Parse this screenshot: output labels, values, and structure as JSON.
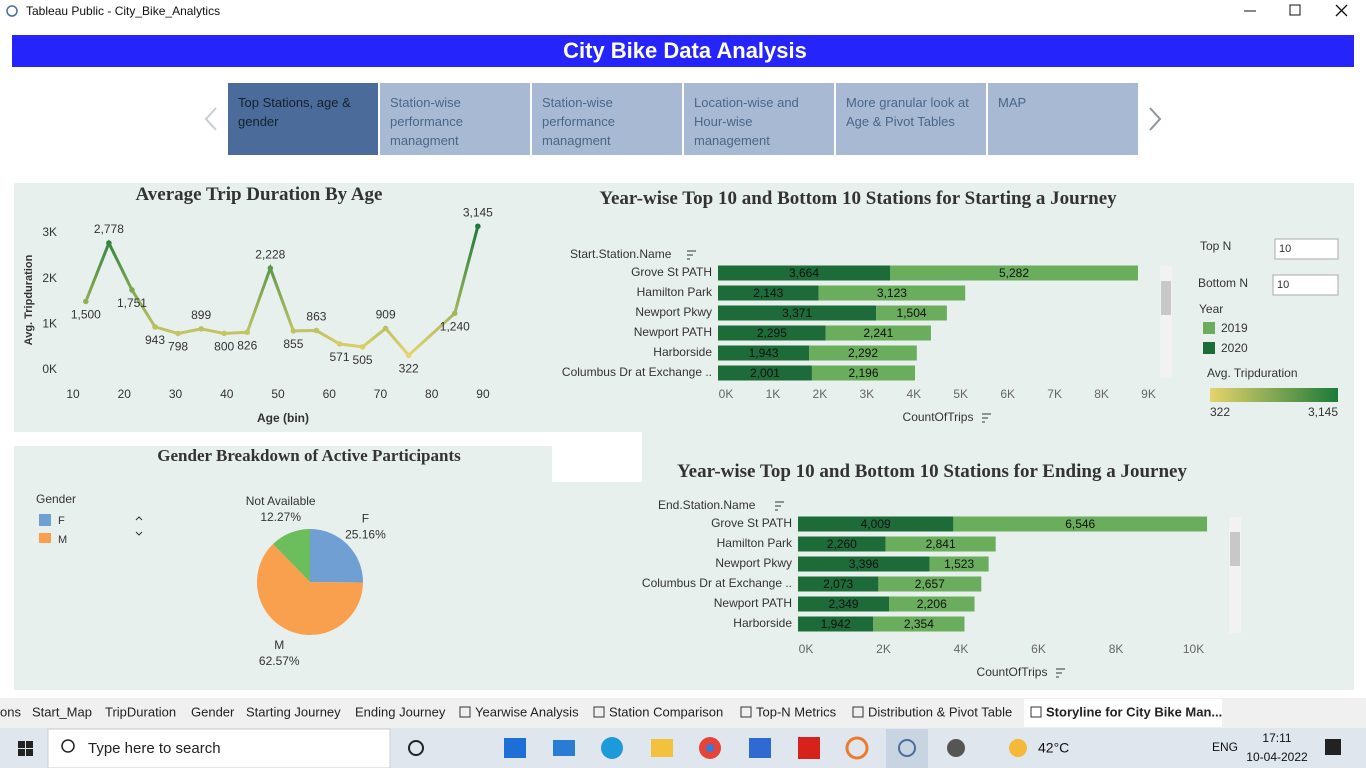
{
  "window": {
    "title": "Tableau Public - City_Bike_Analytics"
  },
  "header": {
    "title": "City Bike Data Analysis"
  },
  "story_points": [
    "Top Stations, age & gender",
    "Station-wise performance managment",
    "Station-wise performance managment",
    "Location-wise and Hour-wise management",
    "More granular look at Age & Pivot Tables",
    "MAP"
  ],
  "filters": {
    "top_n_label": "Top N",
    "top_n": 10,
    "bottom_n_label": "Bottom N",
    "bottom_n": 10
  },
  "chart_data": [
    {
      "type": "line",
      "title": "Average Trip Duration By Age",
      "x_label": "Age (bin)",
      "y_label": "Avg. Tripduration",
      "x": [
        12.5,
        17,
        21.5,
        26,
        30.5,
        35,
        39.5,
        44,
        48.5,
        53,
        57.5,
        62,
        66.5,
        71,
        75.5,
        84.5,
        89
      ],
      "values": [
        1500,
        2778,
        1751,
        943,
        798,
        899,
        800,
        826,
        2228,
        855,
        863,
        571,
        505,
        909,
        322,
        1240,
        3145
      ],
      "value_labels": [
        "1,500",
        "2,778",
        "1,751",
        "943",
        "798",
        "899",
        "800",
        "826",
        "2,228",
        "855",
        "863",
        "571",
        "505",
        "909",
        "322",
        "1,240",
        "3,145"
      ],
      "xlim": [
        5,
        95
      ],
      "xticks": [
        10,
        20,
        30,
        40,
        50,
        60,
        70,
        80,
        90
      ],
      "ylim": [
        -300,
        3300
      ],
      "yticks": [
        {
          "value": 0,
          "label": "0K"
        },
        {
          "value": 1000,
          "label": "1K"
        },
        {
          "value": 2000,
          "label": "2K"
        },
        {
          "value": 3000,
          "label": "3K"
        }
      ],
      "color_scale": {
        "title": "Avg. Tripduration",
        "colors": [
          "#e6d46c",
          "#1c7a3a"
        ],
        "range": [
          322,
          {
            "value": 3145,
            "label": "3,145"
          }
        ]
      }
    },
    {
      "type": "bar",
      "orientation": "horizontal",
      "stacked": true,
      "title": "Year-wise Top 10 and Bottom 10 Stations for Starting a Journey",
      "category_label": "Start.Station.Name",
      "x_label": "CountOfTrips",
      "legend_title": "Year",
      "categories": [
        "Grove St PATH",
        "Hamilton Park",
        "Newport Pkwy",
        "Newport PATH",
        "Harborside",
        "Columbus Dr at Exchange .."
      ],
      "series": [
        {
          "name": "2019",
          "color": "#6aad5c",
          "values": [
            5282,
            3123,
            1504,
            2241,
            2292,
            2196
          ],
          "value_labels": [
            "5,282",
            "3,123",
            "1,504",
            "2,241",
            "2,292",
            "2,196"
          ]
        },
        {
          "name": "2020",
          "color": "#1e6b3a",
          "values": [
            3664,
            2143,
            3371,
            2295,
            1943,
            2001
          ],
          "value_labels": [
            "3,664",
            "2,143",
            "3,371",
            "2,295",
            "1,943",
            "2,001"
          ]
        }
      ],
      "xlim": [
        0,
        9300
      ],
      "xticks": [
        {
          "value": 0,
          "label": "0K"
        },
        {
          "value": 1000,
          "label": "1K"
        },
        {
          "value": 2000,
          "label": "2K"
        },
        {
          "value": 3000,
          "label": "3K"
        },
        {
          "value": 4000,
          "label": "4K"
        },
        {
          "value": 5000,
          "label": "5K"
        },
        {
          "value": 6000,
          "label": "6K"
        },
        {
          "value": 7000,
          "label": "7K"
        },
        {
          "value": 8000,
          "label": "8K"
        },
        {
          "value": 9000,
          "label": "9K"
        }
      ]
    },
    {
      "type": "bar",
      "orientation": "horizontal",
      "stacked": true,
      "title": "Year-wise Top 10 and Bottom 10 Stations for Ending a Journey",
      "category_label": "End.Station.Name",
      "x_label": "CountOfTrips",
      "categories": [
        "Grove St PATH",
        "Hamilton Park",
        "Newport Pkwy",
        "Columbus Dr at Exchange ..",
        "Newport PATH",
        "Harborside"
      ],
      "series": [
        {
          "color": "#6aad5c",
          "values": [
            6546,
            2841,
            1523,
            2657,
            2206,
            2354
          ],
          "value_labels": [
            "6,546",
            "2,841",
            "1,523",
            "2,657",
            "2,206",
            "2,354"
          ]
        },
        {
          "color": "#1e6b3a",
          "values": [
            4009,
            2260,
            3396,
            2073,
            2349,
            1942
          ],
          "value_labels": [
            "4,009",
            "2,260",
            "3,396",
            "2,073",
            "2,349",
            "1,942"
          ]
        }
      ],
      "xlim": [
        0,
        11000
      ],
      "xticks": [
        {
          "value": 0,
          "label": "0K"
        },
        {
          "value": 2000,
          "label": "2K"
        },
        {
          "value": 4000,
          "label": "4K"
        },
        {
          "value": 6000,
          "label": "6K"
        },
        {
          "value": 8000,
          "label": "8K"
        },
        {
          "value": 10000,
          "label": "10K"
        }
      ]
    },
    {
      "type": "pie",
      "title": "Gender Breakdown of Active Participants",
      "legend_title": "Gender",
      "categories": [
        "F",
        "M",
        "Not Available"
      ],
      "values": [
        25.16,
        62.57,
        12.27
      ],
      "value_labels": [
        "25.16%",
        "62.57%",
        "12.27%"
      ],
      "colors": [
        "#6f9fd3",
        "#f9a04e",
        "#6cbd5c"
      ]
    }
  ],
  "sheet_tabs": [
    "ons",
    "Start_Map",
    "TripDuration",
    "Gender",
    "Starting Journey",
    "Ending Journey",
    "Yearwise Analysis",
    "Station Comparison",
    "Top-N Metrics",
    "Distribution & Pivot Table",
    "Storyline for City Bike Man..."
  ],
  "taskbar": {
    "search": "Type here to search",
    "weather": "42°C",
    "language": "ENG",
    "time": "17:11",
    "date": "10-04-2022"
  }
}
